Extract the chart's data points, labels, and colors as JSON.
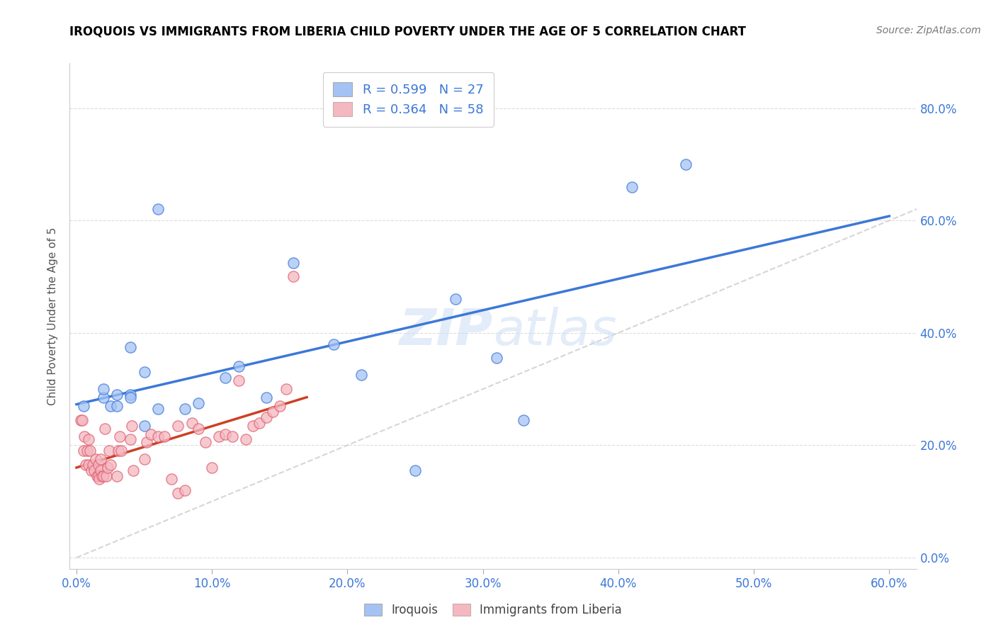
{
  "title": "IROQUOIS VS IMMIGRANTS FROM LIBERIA CHILD POVERTY UNDER THE AGE OF 5 CORRELATION CHART",
  "source": "Source: ZipAtlas.com",
  "ylabel": "Child Poverty Under the Age of 5",
  "xlim": [
    -0.005,
    0.62
  ],
  "ylim": [
    -0.02,
    0.88
  ],
  "xticks": [
    0.0,
    0.1,
    0.2,
    0.3,
    0.4,
    0.5,
    0.6
  ],
  "yticks": [
    0.0,
    0.2,
    0.4,
    0.6,
    0.8
  ],
  "blue_color": "#a4c2f4",
  "pink_color": "#f4b8c1",
  "blue_line_color": "#3c78d8",
  "pink_line_color": "#cc4125",
  "diagonal_color": "#cccccc",
  "tick_label_color": "#3c78d8",
  "legend_R1": "0.599",
  "legend_N1": "27",
  "legend_R2": "0.364",
  "legend_N2": "58",
  "watermark_zip": "ZIP",
  "watermark_atlas": "atlas",
  "iroquois_x": [
    0.005,
    0.02,
    0.02,
    0.025,
    0.03,
    0.03,
    0.04,
    0.04,
    0.04,
    0.05,
    0.05,
    0.06,
    0.06,
    0.08,
    0.09,
    0.11,
    0.12,
    0.14,
    0.16,
    0.19,
    0.21,
    0.25,
    0.28,
    0.31,
    0.33,
    0.41,
    0.45
  ],
  "iroquois_y": [
    0.27,
    0.285,
    0.3,
    0.27,
    0.27,
    0.29,
    0.29,
    0.375,
    0.285,
    0.33,
    0.235,
    0.265,
    0.62,
    0.265,
    0.275,
    0.32,
    0.34,
    0.285,
    0.525,
    0.38,
    0.325,
    0.155,
    0.46,
    0.355,
    0.245,
    0.66,
    0.7
  ],
  "liberia_x": [
    0.003,
    0.004,
    0.005,
    0.006,
    0.007,
    0.008,
    0.009,
    0.009,
    0.01,
    0.011,
    0.012,
    0.013,
    0.014,
    0.015,
    0.016,
    0.016,
    0.017,
    0.018,
    0.018,
    0.019,
    0.02,
    0.021,
    0.022,
    0.023,
    0.024,
    0.025,
    0.03,
    0.031,
    0.032,
    0.033,
    0.04,
    0.041,
    0.042,
    0.05,
    0.052,
    0.055,
    0.06,
    0.065,
    0.07,
    0.075,
    0.075,
    0.08,
    0.085,
    0.09,
    0.095,
    0.1,
    0.105,
    0.11,
    0.115,
    0.12,
    0.125,
    0.13,
    0.135,
    0.14,
    0.145,
    0.15,
    0.155,
    0.16
  ],
  "liberia_y": [
    0.245,
    0.245,
    0.19,
    0.215,
    0.165,
    0.19,
    0.165,
    0.21,
    0.19,
    0.155,
    0.165,
    0.155,
    0.175,
    0.145,
    0.145,
    0.165,
    0.14,
    0.155,
    0.175,
    0.145,
    0.145,
    0.23,
    0.145,
    0.16,
    0.19,
    0.165,
    0.145,
    0.19,
    0.215,
    0.19,
    0.21,
    0.235,
    0.155,
    0.175,
    0.205,
    0.22,
    0.215,
    0.215,
    0.14,
    0.115,
    0.235,
    0.12,
    0.24,
    0.23,
    0.205,
    0.16,
    0.215,
    0.22,
    0.215,
    0.315,
    0.21,
    0.235,
    0.24,
    0.25,
    0.26,
    0.27,
    0.3,
    0.5
  ]
}
